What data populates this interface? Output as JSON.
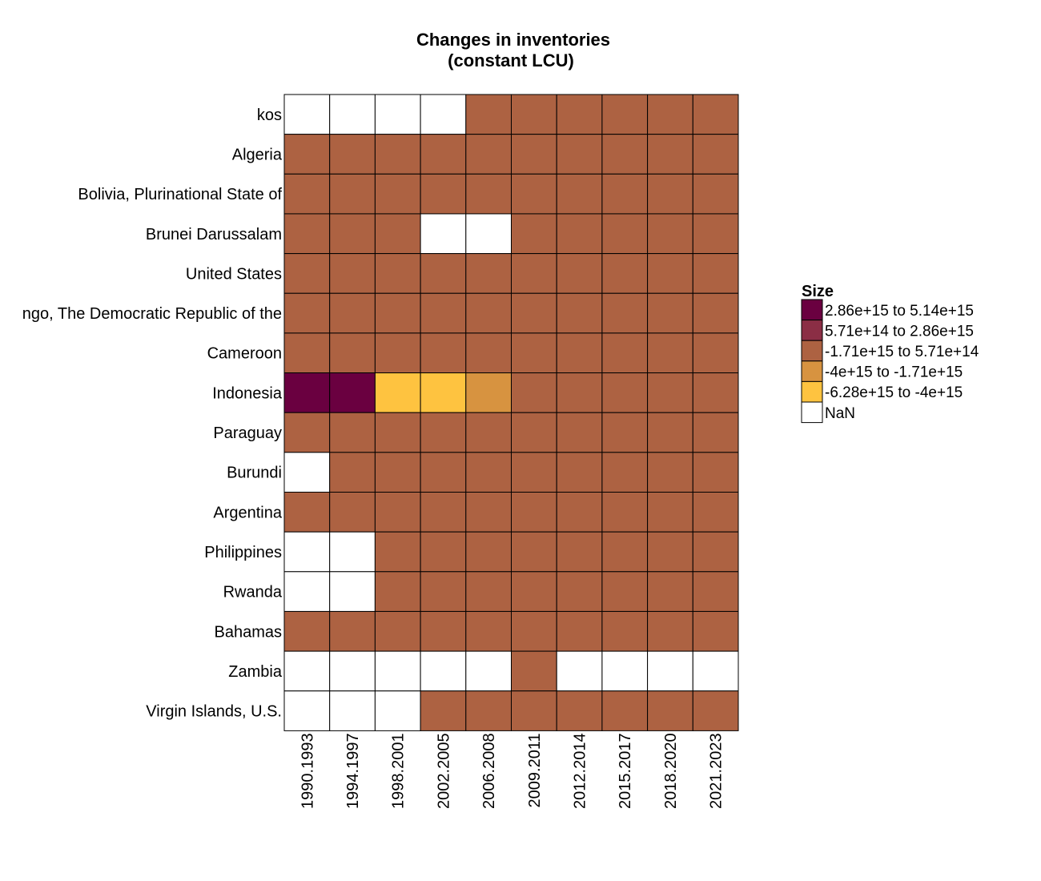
{
  "chart_data": {
    "type": "heatmap",
    "title": [
      "Changes in inventories",
      "(constant LCU)"
    ],
    "xlabel": "",
    "ylabel": "",
    "x_categories": [
      "1990.1993",
      "1994.1997",
      "1998.2001",
      "2002.2005",
      "2006.2008",
      "2009.2011",
      "2012.2014",
      "2015.2017",
      "2018.2020",
      "2021.2023"
    ],
    "y_categories": [
      "kos",
      "Algeria",
      "Bolivia, Plurinational State of",
      "Brunei Darussalam",
      "United States",
      "ngo, The Democratic Republic of the",
      "Cameroon",
      "Indonesia",
      "Paraguay",
      "Burundi",
      "Argentina",
      "Philippines",
      "Rwanda",
      "Bahamas",
      "Zambia",
      "Virgin Islands, U.S."
    ],
    "legend": {
      "title": "Size",
      "position": "right",
      "bins": [
        {
          "label": "2.86e+15 to 5.14e+15",
          "color": "#6a0040"
        },
        {
          "label": "5.71e+14 to 2.86e+15",
          "color": "#8b2e45"
        },
        {
          "label": "-1.71e+15 to 5.71e+14",
          "color": "#ad6242"
        },
        {
          "label": "-4e+15 to -1.71e+15",
          "color": "#d79340"
        },
        {
          "label": "-6.28e+15 to -4e+15",
          "color": "#fec340"
        },
        {
          "label": "NaN",
          "color": "#ffffff"
        }
      ]
    },
    "values_bin_index": [
      [
        5,
        5,
        5,
        5,
        2,
        2,
        2,
        2,
        2,
        2
      ],
      [
        2,
        2,
        2,
        2,
        2,
        2,
        2,
        2,
        2,
        2
      ],
      [
        2,
        2,
        2,
        2,
        2,
        2,
        2,
        2,
        2,
        2
      ],
      [
        2,
        2,
        2,
        5,
        5,
        2,
        2,
        2,
        2,
        2
      ],
      [
        2,
        2,
        2,
        2,
        2,
        2,
        2,
        2,
        2,
        2
      ],
      [
        2,
        2,
        2,
        2,
        2,
        2,
        2,
        2,
        2,
        2
      ],
      [
        2,
        2,
        2,
        2,
        2,
        2,
        2,
        2,
        2,
        2
      ],
      [
        0,
        0,
        4,
        4,
        3,
        2,
        2,
        2,
        2,
        2
      ],
      [
        2,
        2,
        2,
        2,
        2,
        2,
        2,
        2,
        2,
        2
      ],
      [
        5,
        2,
        2,
        2,
        2,
        2,
        2,
        2,
        2,
        2
      ],
      [
        2,
        2,
        2,
        2,
        2,
        2,
        2,
        2,
        2,
        2
      ],
      [
        5,
        5,
        2,
        2,
        2,
        2,
        2,
        2,
        2,
        2
      ],
      [
        5,
        5,
        2,
        2,
        2,
        2,
        2,
        2,
        2,
        2
      ],
      [
        2,
        2,
        2,
        2,
        2,
        2,
        2,
        2,
        2,
        2
      ],
      [
        5,
        5,
        5,
        5,
        5,
        2,
        5,
        5,
        5,
        5
      ],
      [
        5,
        5,
        5,
        2,
        2,
        2,
        2,
        2,
        2,
        2
      ]
    ],
    "grid": true
  }
}
